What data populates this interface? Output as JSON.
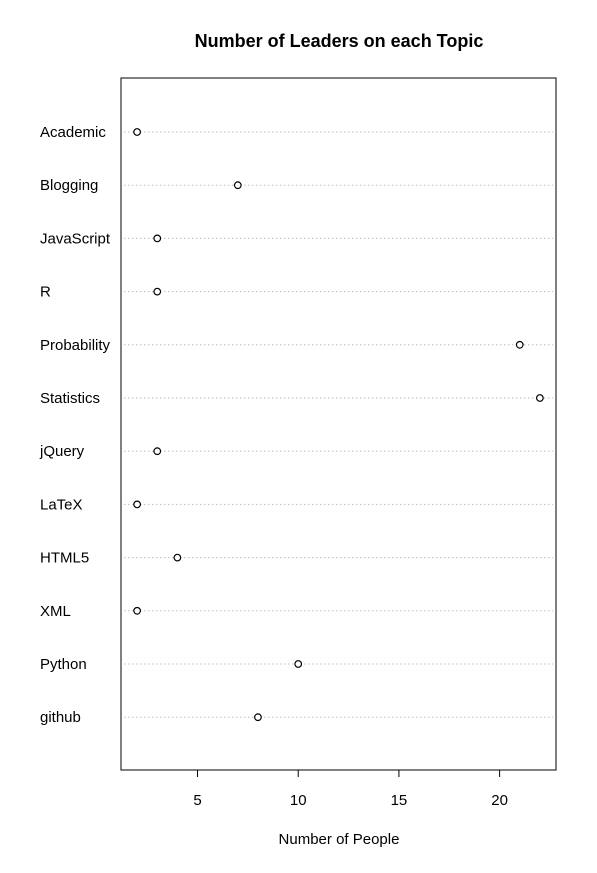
{
  "chart_data": {
    "type": "scatter",
    "title": "Number of Leaders on each Topic",
    "xlabel": "Number of People",
    "ylabel": "",
    "categories": [
      "Academic",
      "Blogging",
      "JavaScript",
      "R",
      "Probability",
      "Statistics",
      "jQuery",
      "LaTeX",
      "HTML5",
      "XML",
      "Python",
      "github"
    ],
    "values": [
      2,
      7,
      3,
      3,
      21,
      22,
      3,
      2,
      4,
      2,
      10,
      8
    ],
    "xlim": [
      1.2,
      22.8
    ],
    "xticks": [
      5,
      10,
      15,
      20
    ],
    "grid": "horizontal dotted lines per category",
    "legend": "none",
    "colors": {
      "axis": "#000000",
      "grid": "#bdbdbd",
      "marker_stroke": "#000000",
      "marker_fill": "#ffffff"
    }
  }
}
